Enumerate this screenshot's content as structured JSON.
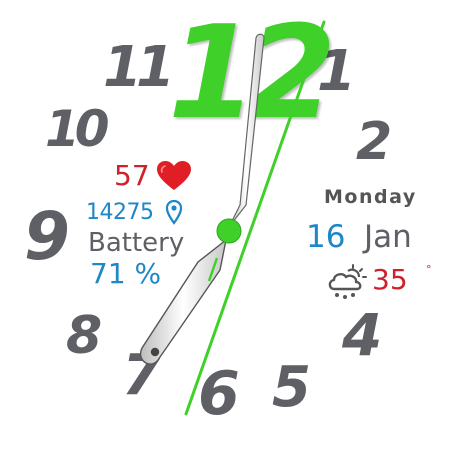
{
  "dial": {
    "n12": "12",
    "n1": "1",
    "n2": "2",
    "n4": "4",
    "n5": "5",
    "n6": "6",
    "n7": "7",
    "n8": "8",
    "n9": "9",
    "n10": "10",
    "n11": "11",
    "accent_color": "#3fd02a",
    "numeral_color": "#5f6066"
  },
  "health": {
    "heart_rate": "57",
    "heart_icon": "heart-icon",
    "steps": "14275",
    "steps_icon": "location-pin-icon"
  },
  "battery": {
    "label": "Battery",
    "value": "71 %"
  },
  "date": {
    "weekday": "Monday",
    "day": "16",
    "month": "Jan"
  },
  "weather": {
    "icon": "cloud-snow-sun-icon",
    "temperature": "35",
    "unit": "°"
  },
  "colors": {
    "heart_rate": "#d0202a",
    "steps": "#1e87c8",
    "battery_value": "#1e87c8",
    "date_day": "#1e87c8",
    "temperature": "#d0202a"
  }
}
